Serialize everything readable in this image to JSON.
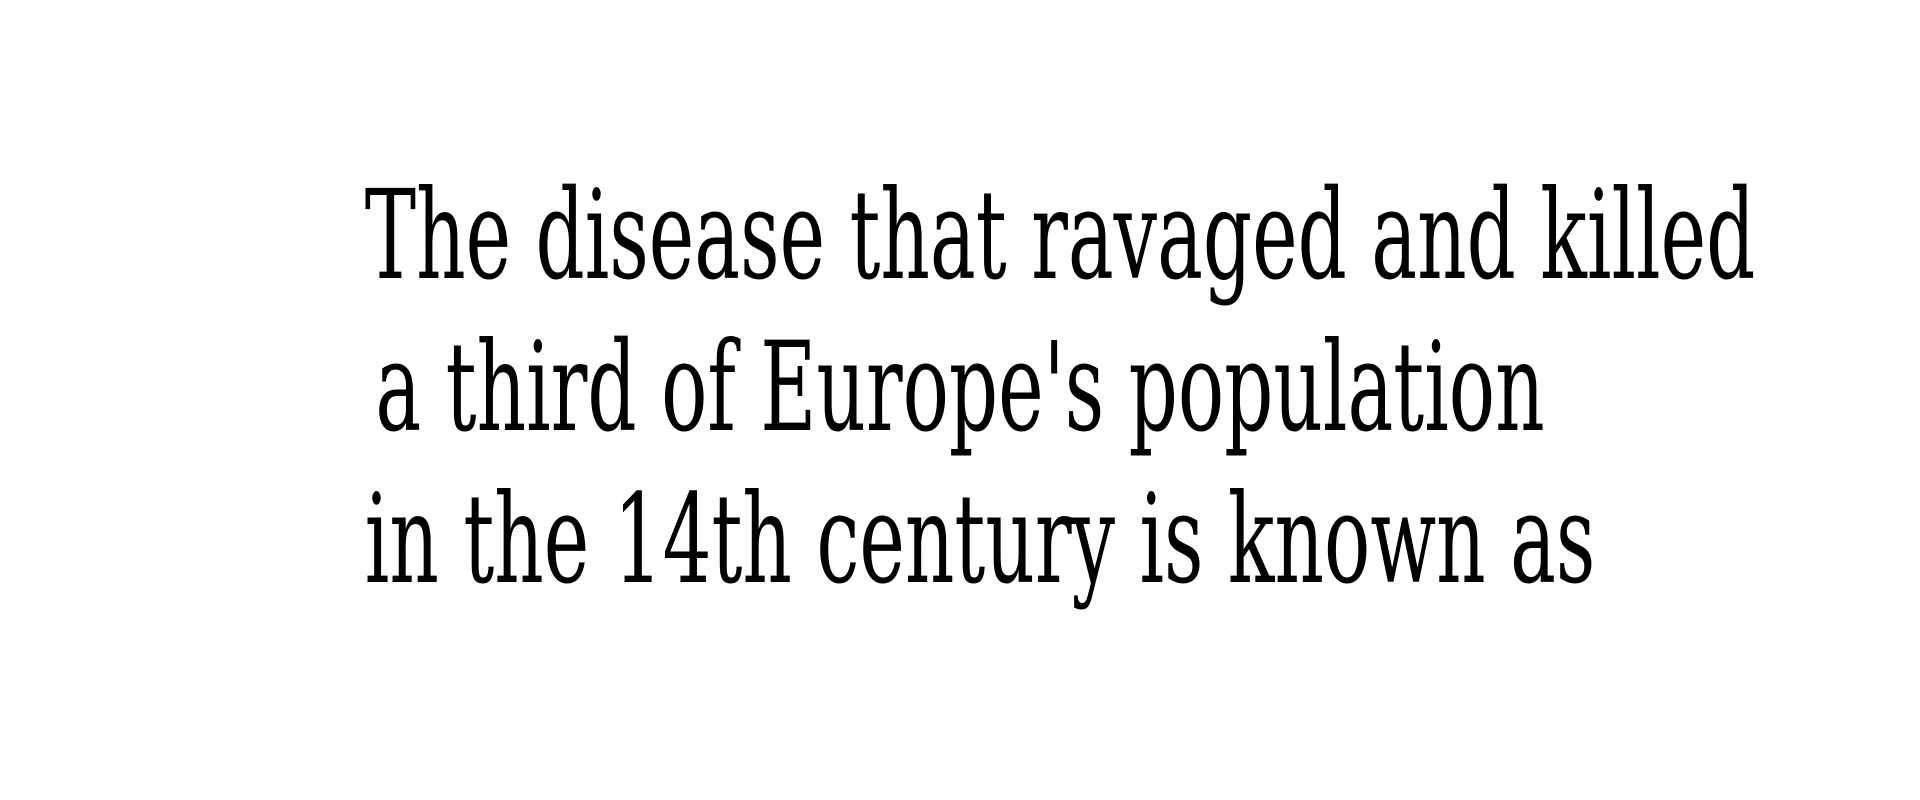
{
  "question": {
    "lines": [
      "The disease that ravaged and killed",
      "a third of Europe's population",
      "in the 14th century is known as"
    ]
  },
  "colors": {
    "background": "#ffffff",
    "text": "#000000"
  }
}
